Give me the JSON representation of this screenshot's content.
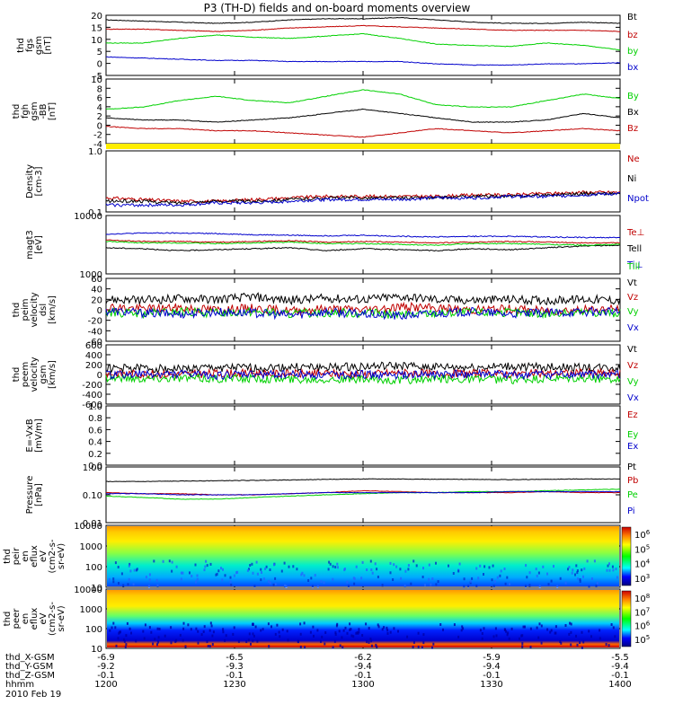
{
  "title": "P3 (TH-D) fields and on-board moments overview",
  "colors": {
    "black": "#000000",
    "red": "#c00000",
    "green": "#00d000",
    "blue": "#0000cc",
    "yellow": "#ffee00"
  },
  "chart_data": [
    {
      "type": "line",
      "panel": "fgs",
      "ylabel": [
        "thd",
        "fgs",
        "gsm",
        "[nT]"
      ],
      "ylim": [
        -5,
        21
      ],
      "yticks": [
        "20",
        "15",
        "10",
        "5",
        "0",
        "-5"
      ],
      "series": [
        {
          "name": "Bt",
          "color": "black",
          "values": [
            19,
            18.5,
            18,
            17.5,
            18,
            19,
            19.5,
            19.5,
            20,
            19,
            18,
            17.5,
            17.5,
            18,
            17.5
          ]
        },
        {
          "name": "bz",
          "color": "red",
          "values": [
            15,
            15,
            14.5,
            14,
            14.5,
            15.5,
            16,
            16.5,
            16,
            15.5,
            15,
            14.5,
            14.5,
            14.5,
            14
          ]
        },
        {
          "name": "by",
          "color": "green",
          "values": [
            9,
            9,
            11,
            12.5,
            11.5,
            11,
            12,
            13,
            11,
            8.5,
            8,
            7.5,
            9,
            8,
            6
          ]
        },
        {
          "name": "bx",
          "color": "blue",
          "values": [
            3,
            2.5,
            2,
            1.5,
            1.5,
            1,
            1,
            1,
            1,
            0,
            -0.5,
            -0.5,
            0,
            0,
            0.5
          ]
        }
      ]
    },
    {
      "type": "line",
      "panel": "fgh",
      "ylabel": [
        "thd",
        "fgh",
        "gsm",
        "-BB",
        "[nT]"
      ],
      "ylim": [
        -5,
        10
      ],
      "yticks": [
        "10",
        "8",
        "6",
        "4",
        "2",
        "0",
        "-2",
        "-4"
      ],
      "series": [
        {
          "name": "By",
          "color": "green",
          "values": [
            3,
            3.5,
            5,
            6,
            5,
            4.5,
            6,
            7.5,
            6.5,
            4,
            3.5,
            3.5,
            5,
            6.5,
            5.5
          ]
        },
        {
          "name": "Bx",
          "color": "black",
          "values": [
            1,
            0.5,
            0.5,
            0,
            0.5,
            1,
            2,
            3,
            2,
            1,
            0,
            0,
            0.5,
            2,
            1
          ]
        },
        {
          "name": "Bz",
          "color": "red",
          "values": [
            -1,
            -1.5,
            -1.5,
            -2,
            -2,
            -2.5,
            -3,
            -3.5,
            -2.5,
            -1.5,
            -2,
            -2.5,
            -2,
            -1.5,
            -2
          ]
        }
      ]
    },
    {
      "type": "line",
      "panel": "density",
      "ylabel": [
        "Density",
        "[cm-3]"
      ],
      "log": true,
      "ylim": [
        0.1,
        1.0
      ],
      "yticks": [
        "1.0",
        "0.1"
      ],
      "series": [
        {
          "name": "Ne",
          "color": "red",
          "values": [
            0.17,
            0.16,
            0.15,
            0.15,
            0.16,
            0.17,
            0.18,
            0.18,
            0.18,
            0.18,
            0.19,
            0.19,
            0.2,
            0.21,
            0.21
          ]
        },
        {
          "name": "Ni",
          "color": "black",
          "values": [
            0.15,
            0.15,
            0.14,
            0.15,
            0.15,
            0.16,
            0.17,
            0.17,
            0.17,
            0.17,
            0.18,
            0.18,
            0.19,
            0.2,
            0.2
          ]
        },
        {
          "name": "Npot",
          "color": "blue",
          "values": [
            0.13,
            0.13,
            0.13,
            0.14,
            0.14,
            0.15,
            0.16,
            0.16,
            0.16,
            0.17,
            0.17,
            0.18,
            0.18,
            0.19,
            0.2
          ]
        }
      ]
    },
    {
      "type": "line",
      "panel": "temperature",
      "ylabel": [
        "magt3",
        "[eV]"
      ],
      "log": true,
      "ylim": [
        1000,
        10000
      ],
      "yticks": [
        "10000",
        "1000"
      ],
      "series": [
        {
          "name": "Te⊥",
          "color": "red",
          "values": [
            3800,
            3600,
            3600,
            3500,
            3600,
            3700,
            3500,
            3600,
            3500,
            3400,
            3500,
            3600,
            3500,
            3400,
            3400
          ]
        },
        {
          "name": "Tell",
          "color": "black",
          "values": [
            2800,
            2700,
            2500,
            2600,
            2700,
            2800,
            2500,
            2700,
            2600,
            2500,
            2700,
            2600,
            2800,
            3000,
            3100
          ]
        },
        {
          "name": "Ti⊥",
          "color": "blue",
          "values": [
            4800,
            5000,
            5000,
            4900,
            4700,
            4600,
            4500,
            4600,
            4400,
            4300,
            4400,
            4400,
            4300,
            4200,
            4200
          ]
        },
        {
          "name": "Till",
          "color": "green",
          "values": [
            3600,
            3400,
            3400,
            3300,
            3400,
            3500,
            3300,
            3300,
            3200,
            3100,
            3300,
            3300,
            3200,
            3100,
            3200
          ]
        }
      ]
    },
    {
      "type": "line",
      "panel": "peim_velocity",
      "ylabel": [
        "thd",
        "peim",
        "velocity",
        "dsl",
        "[km/s]"
      ],
      "ylim": [
        -60,
        60
      ],
      "yticks": [
        "60",
        "40",
        "20",
        "0",
        "-20",
        "-40",
        "-60"
      ],
      "series": [
        {
          "name": "Vt",
          "color": "black",
          "values": [
            20,
            18,
            22,
            20,
            25,
            18,
            22,
            20,
            25,
            20,
            18,
            20,
            18,
            20,
            18
          ]
        },
        {
          "name": "Vz",
          "color": "red",
          "values": [
            5,
            2,
            4,
            0,
            3,
            -2,
            2,
            0,
            6,
            3,
            0,
            2,
            -2,
            0,
            2
          ]
        },
        {
          "name": "Vy",
          "color": "green",
          "values": [
            -5,
            -8,
            -4,
            -6,
            -3,
            -8,
            -5,
            -6,
            -10,
            -6,
            -5,
            -5,
            -8,
            -5,
            -6
          ]
        },
        {
          "name": "Vx",
          "color": "blue",
          "values": [
            -2,
            -6,
            -8,
            -4,
            -6,
            -10,
            -4,
            -8,
            -12,
            -6,
            -4,
            -8,
            -6,
            -4,
            -4
          ]
        }
      ]
    },
    {
      "type": "line",
      "panel": "peem_velocity",
      "ylabel": [
        "thd",
        "peem",
        "velocity",
        "gsm",
        "[km/s]"
      ],
      "ylim": [
        -600,
        600
      ],
      "yticks": [
        "600",
        "400",
        "200",
        "0",
        "-200",
        "-400",
        "-600"
      ],
      "series": [
        {
          "name": "Vt",
          "color": "black",
          "values": [
            120,
            130,
            110,
            140,
            130,
            150,
            140,
            160,
            170,
            150,
            140,
            160,
            150,
            140,
            130
          ]
        },
        {
          "name": "Vz",
          "color": "red",
          "values": [
            20,
            10,
            0,
            20,
            30,
            10,
            20,
            0,
            40,
            10,
            20,
            10,
            20,
            30,
            20
          ]
        },
        {
          "name": "Vy",
          "color": "green",
          "values": [
            -60,
            -80,
            -70,
            -90,
            -80,
            -100,
            -90,
            -110,
            -120,
            -100,
            -90,
            -110,
            -100,
            -90,
            -80
          ]
        },
        {
          "name": "Vx",
          "color": "blue",
          "values": [
            -10,
            0,
            10,
            -20,
            0,
            10,
            -10,
            0,
            -20,
            0,
            10,
            -10,
            0,
            -10,
            0
          ]
        }
      ]
    },
    {
      "type": "line",
      "panel": "efield",
      "ylabel": [
        "E=-VxB",
        "[mV/m]"
      ],
      "ylim": [
        -1,
        1
      ],
      "yticks": [
        "1.0",
        "0.8",
        "0.6",
        "0.4",
        "0.2",
        "0.0"
      ],
      "series": [
        {
          "name": "Ez",
          "color": "red",
          "values": []
        },
        {
          "name": "Ey",
          "color": "green",
          "values": []
        },
        {
          "name": "Ex",
          "color": "blue",
          "values": []
        }
      ]
    },
    {
      "type": "line",
      "panel": "pressure",
      "ylabel": [
        "Pressure",
        "[nPa]"
      ],
      "log": true,
      "ylim": [
        0.01,
        1.0
      ],
      "yticks": [
        "1.00",
        "0.10",
        "0.01"
      ],
      "series": [
        {
          "name": "Pt",
          "color": "black",
          "values": [
            0.3,
            0.3,
            0.31,
            0.32,
            0.33,
            0.34,
            0.36,
            0.37,
            0.37,
            0.36,
            0.36,
            0.35,
            0.36,
            0.37,
            0.37
          ]
        },
        {
          "name": "Pb",
          "color": "red",
          "values": [
            0.12,
            0.11,
            0.11,
            0.1,
            0.1,
            0.11,
            0.12,
            0.14,
            0.13,
            0.12,
            0.12,
            0.12,
            0.13,
            0.12,
            0.12
          ]
        },
        {
          "name": "Pe",
          "color": "green",
          "values": [
            0.09,
            0.08,
            0.07,
            0.07,
            0.08,
            0.09,
            0.1,
            0.11,
            0.12,
            0.12,
            0.13,
            0.13,
            0.14,
            0.15,
            0.16
          ]
        },
        {
          "name": "Pi",
          "color": "blue",
          "values": [
            0.11,
            0.11,
            0.1,
            0.1,
            0.1,
            0.11,
            0.12,
            0.12,
            0.12,
            0.12,
            0.12,
            0.13,
            0.13,
            0.13,
            0.13
          ]
        }
      ]
    },
    {
      "type": "heatmap",
      "panel": "peir_spectrogram",
      "ylabel": [
        "thd",
        "peir",
        "en",
        "eflux",
        "eV",
        "(cm2-s-",
        "sr-eV)"
      ],
      "log": true,
      "ylim": [
        10,
        10000
      ],
      "yticks": [
        "10000",
        "1000",
        "100",
        "10"
      ],
      "colorbar": [
        "10^6",
        "10^5",
        "10^4",
        "10^3"
      ]
    },
    {
      "type": "heatmap",
      "panel": "peer_spectrogram",
      "ylabel": [
        "thd",
        "peer",
        "en",
        "eflux",
        "eV",
        "(cm2-s-",
        "sr-eV)"
      ],
      "log": true,
      "ylim": [
        10,
        10000
      ],
      "yticks": [
        "10000",
        "1000",
        "100",
        "10"
      ],
      "colorbar": [
        "10^8",
        "10^7",
        "10^6",
        "10^5"
      ]
    }
  ],
  "axis_labels": {
    "rows": [
      {
        "label": "thd_X-GSM",
        "values": [
          "-6.9",
          "-6.5",
          "-6.2",
          "-5.9",
          "-5.5"
        ]
      },
      {
        "label": "thd_Y-GSM",
        "values": [
          "-9.2",
          "-9.3",
          "-9.4",
          "-9.4",
          "-9.4"
        ]
      },
      {
        "label": "thd_Z-GSM",
        "values": [
          "-0.1",
          "-0.1",
          "-0.1",
          "-0.1",
          "-0.1"
        ]
      },
      {
        "label": "hhmm",
        "values": [
          "1200",
          "1230",
          "1300",
          "1330",
          "1400"
        ]
      }
    ],
    "date": "2010 Feb 19"
  }
}
